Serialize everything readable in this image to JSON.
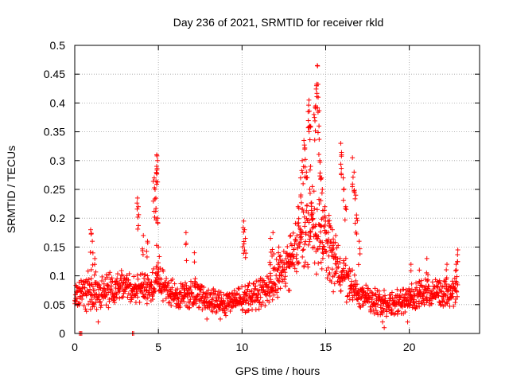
{
  "chart_data": {
    "type": "scatter",
    "title": "Day 236 of 2021, SRMTID for receiver rkld",
    "xlabel": "GPS time / hours",
    "ylabel": "SRMTID / TECUs",
    "xlim": [
      0,
      24.2
    ],
    "ylim": [
      0,
      0.5
    ],
    "x_ticks": [
      0,
      5,
      10,
      15,
      20
    ],
    "x_tick_labels": [
      "0",
      "5",
      "10",
      "15",
      "20"
    ],
    "y_ticks": [
      0,
      0.05,
      0.1,
      0.15,
      0.2,
      0.25,
      0.3,
      0.35,
      0.4,
      0.45,
      0.5
    ],
    "y_tick_labels": [
      "0",
      "0.05",
      "0.1",
      "0.15",
      "0.2",
      "0.25",
      "0.3",
      "0.35",
      "0.4",
      "0.45",
      "0.5"
    ],
    "grid": true,
    "marker": "+",
    "color": "#ff0000",
    "series": [
      {
        "name": "rkld",
        "envelope": [
          {
            "t": 0.0,
            "base": 0.065,
            "spread": 0.02
          },
          {
            "t": 1.0,
            "base": 0.07,
            "spread": 0.035
          },
          {
            "t": 2.0,
            "base": 0.075,
            "spread": 0.025
          },
          {
            "t": 3.0,
            "base": 0.08,
            "spread": 0.025
          },
          {
            "t": 4.0,
            "base": 0.075,
            "spread": 0.025
          },
          {
            "t": 5.0,
            "base": 0.09,
            "spread": 0.025
          },
          {
            "t": 6.0,
            "base": 0.065,
            "spread": 0.02
          },
          {
            "t": 7.0,
            "base": 0.07,
            "spread": 0.025
          },
          {
            "t": 8.0,
            "base": 0.055,
            "spread": 0.02
          },
          {
            "t": 9.0,
            "base": 0.055,
            "spread": 0.02
          },
          {
            "t": 10.0,
            "base": 0.06,
            "spread": 0.02
          },
          {
            "t": 11.0,
            "base": 0.07,
            "spread": 0.025
          },
          {
            "t": 12.0,
            "base": 0.09,
            "spread": 0.03
          },
          {
            "t": 13.0,
            "base": 0.13,
            "spread": 0.04
          },
          {
            "t": 14.0,
            "base": 0.19,
            "spread": 0.06
          },
          {
            "t": 15.0,
            "base": 0.15,
            "spread": 0.05
          },
          {
            "t": 16.0,
            "base": 0.1,
            "spread": 0.035
          },
          {
            "t": 17.0,
            "base": 0.065,
            "spread": 0.02
          },
          {
            "t": 18.0,
            "base": 0.055,
            "spread": 0.02
          },
          {
            "t": 19.0,
            "base": 0.05,
            "spread": 0.02
          },
          {
            "t": 20.0,
            "base": 0.06,
            "spread": 0.02
          },
          {
            "t": 21.0,
            "base": 0.075,
            "spread": 0.025
          },
          {
            "t": 22.0,
            "base": 0.065,
            "spread": 0.025
          },
          {
            "t": 22.9,
            "base": 0.08,
            "spread": 0.025
          }
        ],
        "peaks": [
          {
            "x": 0.95,
            "y": 0.18
          },
          {
            "x": 1.05,
            "y": 0.16
          },
          {
            "x": 1.2,
            "y": 0.13
          },
          {
            "x": 3.75,
            "y": 0.235
          },
          {
            "x": 3.8,
            "y": 0.22
          },
          {
            "x": 4.1,
            "y": 0.17
          },
          {
            "x": 4.35,
            "y": 0.16
          },
          {
            "x": 4.75,
            "y": 0.27
          },
          {
            "x": 4.8,
            "y": 0.25
          },
          {
            "x": 4.85,
            "y": 0.235
          },
          {
            "x": 4.9,
            "y": 0.31
          },
          {
            "x": 4.95,
            "y": 0.3
          },
          {
            "x": 4.9,
            "y": 0.29
          },
          {
            "x": 4.95,
            "y": 0.2
          },
          {
            "x": 5.0,
            "y": 0.15
          },
          {
            "x": 6.65,
            "y": 0.175
          },
          {
            "x": 7.15,
            "y": 0.14
          },
          {
            "x": 10.1,
            "y": 0.195
          },
          {
            "x": 10.15,
            "y": 0.18
          },
          {
            "x": 10.2,
            "y": 0.165
          },
          {
            "x": 11.7,
            "y": 0.165
          },
          {
            "x": 11.85,
            "y": 0.175
          },
          {
            "x": 12.2,
            "y": 0.15
          },
          {
            "x": 12.9,
            "y": 0.17
          },
          {
            "x": 13.35,
            "y": 0.22
          },
          {
            "x": 13.5,
            "y": 0.27
          },
          {
            "x": 13.6,
            "y": 0.3
          },
          {
            "x": 13.7,
            "y": 0.335
          },
          {
            "x": 13.75,
            "y": 0.32
          },
          {
            "x": 13.85,
            "y": 0.28
          },
          {
            "x": 13.95,
            "y": 0.385
          },
          {
            "x": 14.0,
            "y": 0.405
          },
          {
            "x": 14.05,
            "y": 0.36
          },
          {
            "x": 14.1,
            "y": 0.29
          },
          {
            "x": 14.2,
            "y": 0.255
          },
          {
            "x": 14.3,
            "y": 0.38
          },
          {
            "x": 14.4,
            "y": 0.395
          },
          {
            "x": 14.45,
            "y": 0.43
          },
          {
            "x": 14.5,
            "y": 0.465
          },
          {
            "x": 14.55,
            "y": 0.41
          },
          {
            "x": 14.6,
            "y": 0.36
          },
          {
            "x": 14.65,
            "y": 0.3
          },
          {
            "x": 14.75,
            "y": 0.27
          },
          {
            "x": 14.8,
            "y": 0.25
          },
          {
            "x": 14.95,
            "y": 0.22
          },
          {
            "x": 15.2,
            "y": 0.205
          },
          {
            "x": 15.4,
            "y": 0.18
          },
          {
            "x": 15.6,
            "y": 0.17
          },
          {
            "x": 15.9,
            "y": 0.33
          },
          {
            "x": 15.95,
            "y": 0.31
          },
          {
            "x": 16.05,
            "y": 0.27
          },
          {
            "x": 16.2,
            "y": 0.22
          },
          {
            "x": 16.6,
            "y": 0.305
          },
          {
            "x": 16.7,
            "y": 0.28
          },
          {
            "x": 16.8,
            "y": 0.24
          },
          {
            "x": 16.85,
            "y": 0.2
          },
          {
            "x": 17.0,
            "y": 0.16
          },
          {
            "x": 20.1,
            "y": 0.12
          },
          {
            "x": 20.6,
            "y": 0.11
          },
          {
            "x": 21.05,
            "y": 0.13
          },
          {
            "x": 22.25,
            "y": 0.12
          },
          {
            "x": 22.8,
            "y": 0.12
          },
          {
            "x": 22.9,
            "y": 0.145
          }
        ],
        "dips": [
          {
            "x": 0.28,
            "y": 0.0
          },
          {
            "x": 0.35,
            "y": 0.0
          },
          {
            "x": 0.42,
            "y": 0.0
          },
          {
            "x": 3.45,
            "y": 0.0
          },
          {
            "x": 3.52,
            "y": 0.0
          },
          {
            "x": 18.5,
            "y": 0.01
          },
          {
            "x": 18.4,
            "y": 0.02
          },
          {
            "x": 19.9,
            "y": 0.02
          },
          {
            "x": 1.4,
            "y": 0.02
          },
          {
            "x": 7.9,
            "y": 0.025
          },
          {
            "x": 8.7,
            "y": 0.025
          }
        ]
      }
    ]
  }
}
